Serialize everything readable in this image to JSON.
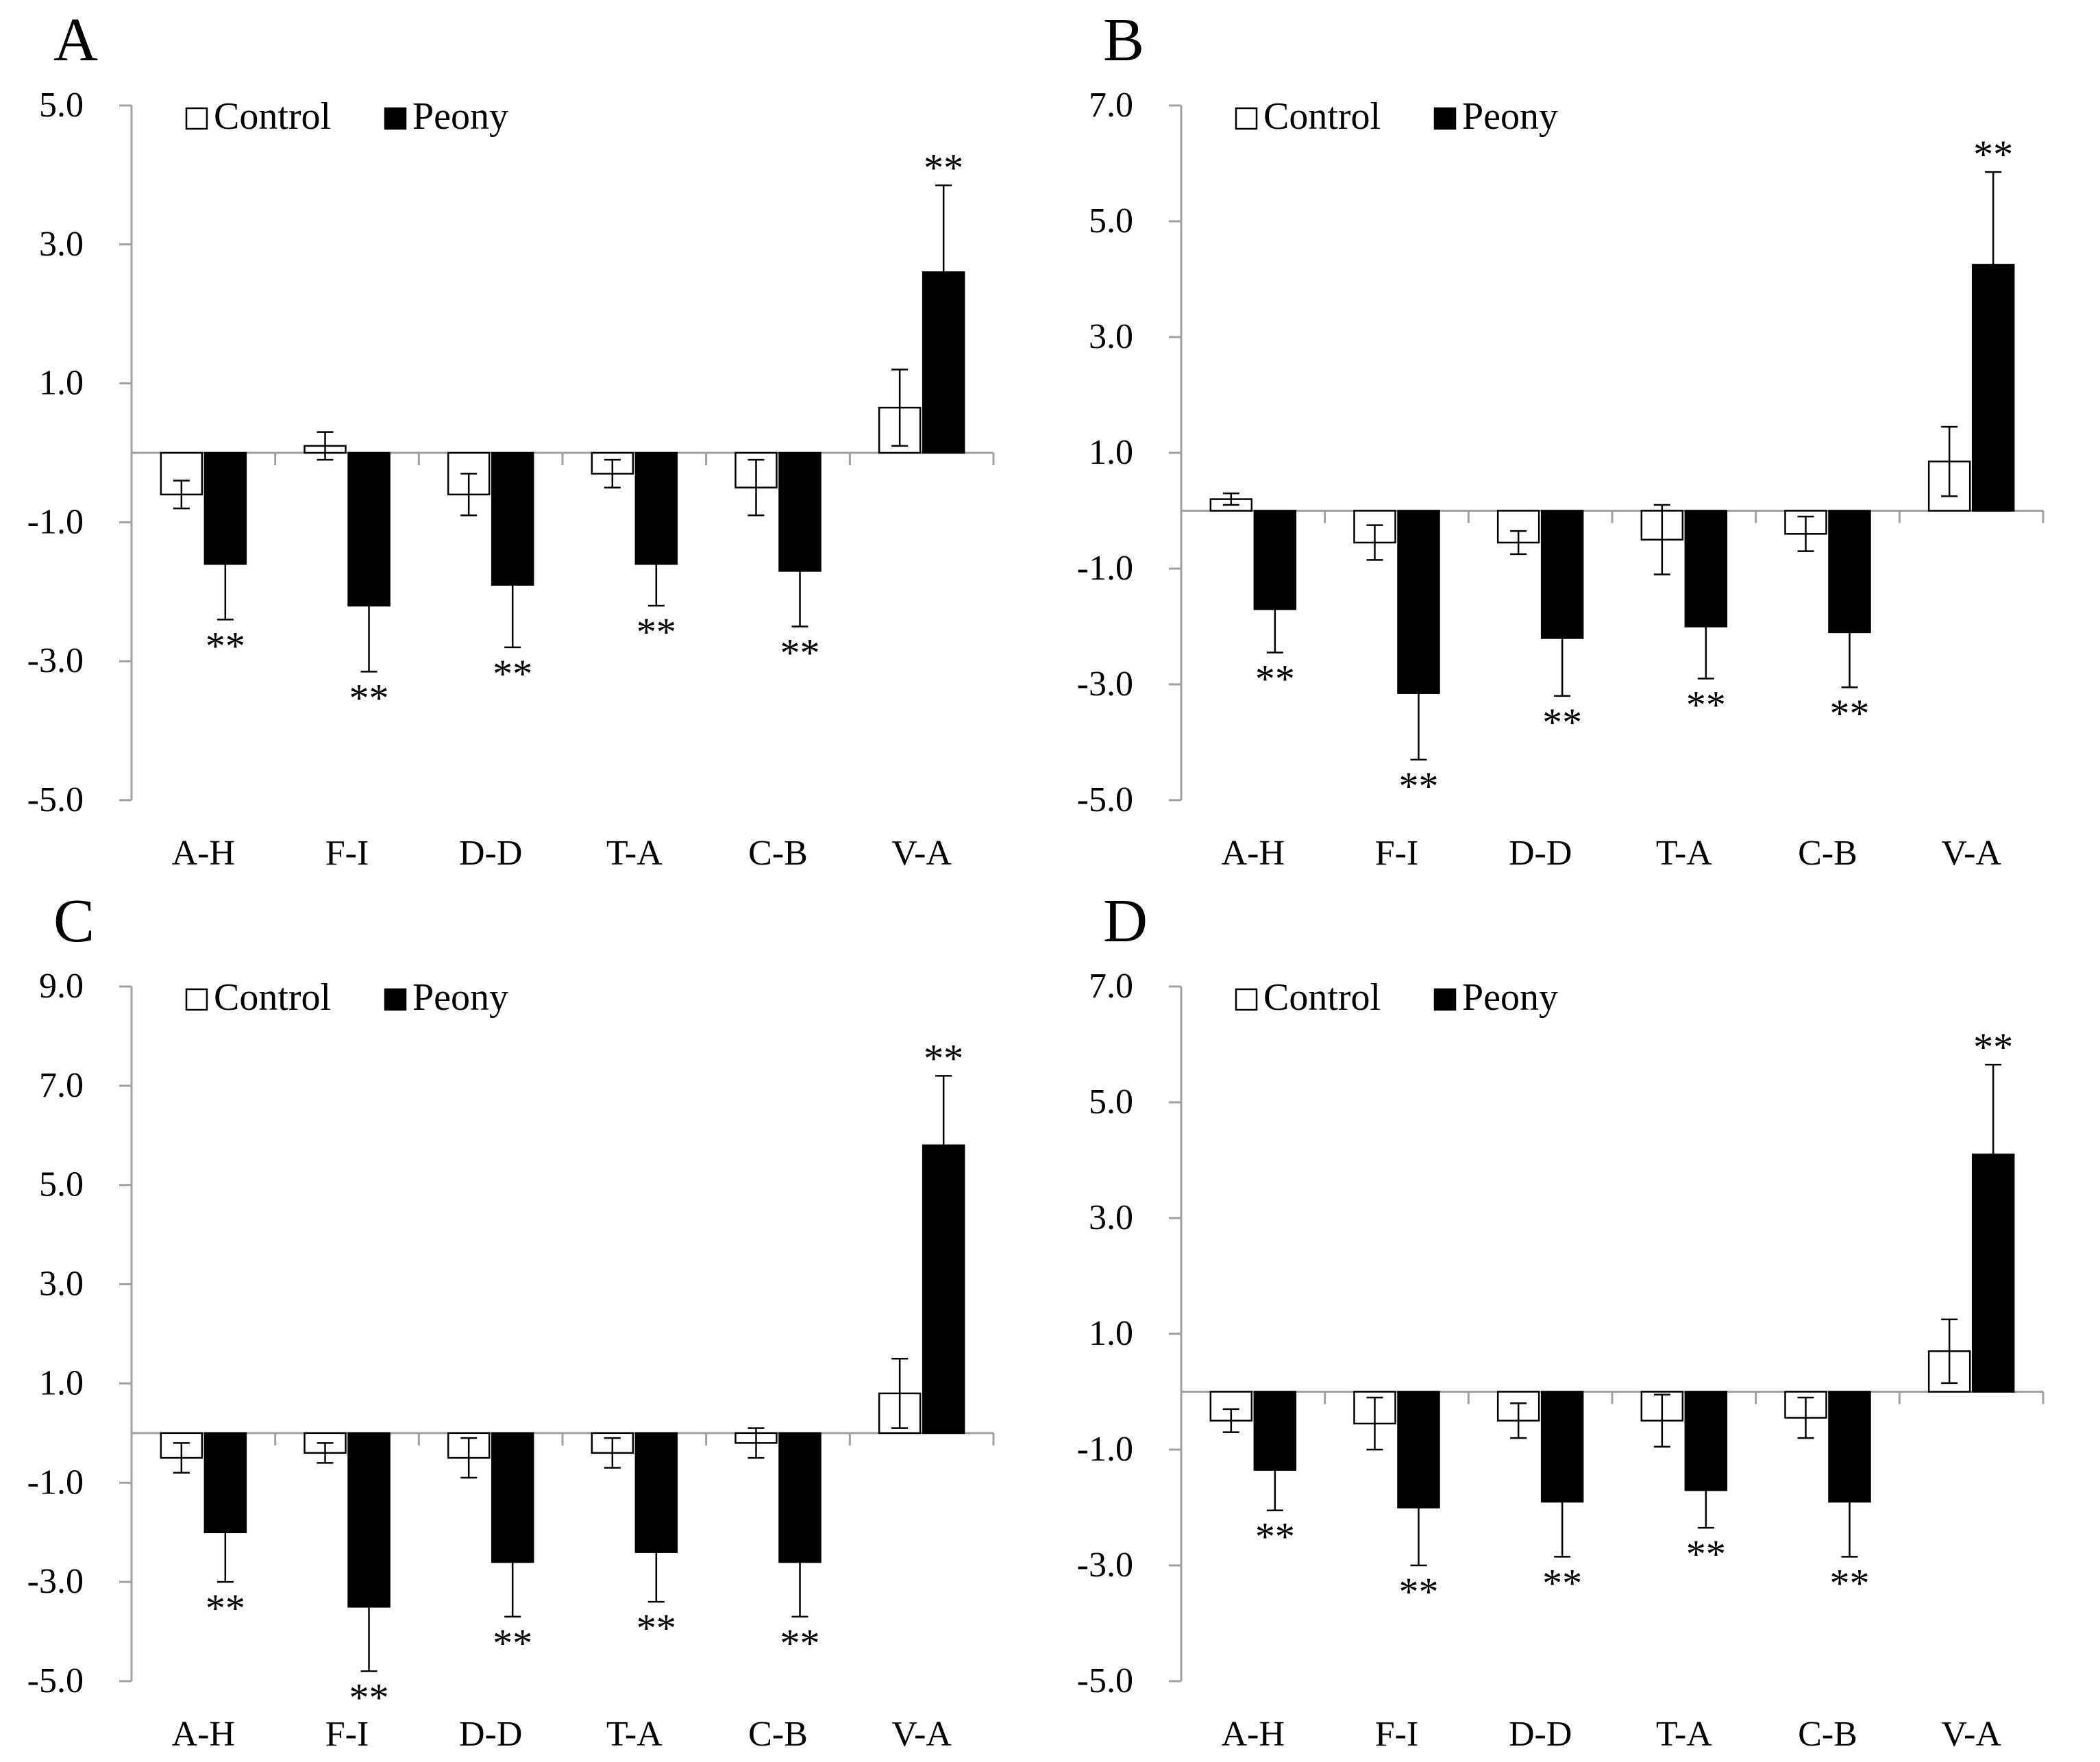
{
  "panels": [
    {
      "letter": "A",
      "chart_data": {
        "type": "bar",
        "categories": [
          "A-H",
          "F-I",
          "D-D",
          "T-A",
          "C-B",
          "V-A"
        ],
        "series": [
          {
            "name": "Control",
            "values": [
              -0.6,
              0.1,
              -0.6,
              -0.3,
              -0.5,
              0.65
            ],
            "errors": [
              0.2,
              0.2,
              0.3,
              0.2,
              0.4,
              0.55
            ]
          },
          {
            "name": "Peony",
            "values": [
              -1.6,
              -2.2,
              -1.9,
              -1.6,
              -1.7,
              2.6
            ],
            "errors": [
              0.8,
              0.95,
              0.9,
              0.6,
              0.8,
              1.25
            ]
          }
        ],
        "significance": [
          "**",
          "**",
          "**",
          "**",
          "**",
          "**"
        ],
        "yticks": [
          "5.0",
          "3.0",
          "1.0",
          "-1.0",
          "-3.0",
          "-5.0"
        ],
        "ylim": [
          -5,
          5
        ],
        "xlabel": "",
        "ylabel": "",
        "legend": "top-left",
        "grid": false
      }
    },
    {
      "letter": "B",
      "chart_data": {
        "type": "bar",
        "categories": [
          "A-H",
          "F-I",
          "D-D",
          "T-A",
          "C-B",
          "V-A"
        ],
        "series": [
          {
            "name": "Control",
            "values": [
              0.2,
              -0.55,
              -0.55,
              -0.5,
              -0.4,
              0.85
            ],
            "errors": [
              0.1,
              0.3,
              0.2,
              0.6,
              0.3,
              0.6
            ]
          },
          {
            "name": "Peony",
            "values": [
              -1.7,
              -3.15,
              -2.2,
              -2.0,
              -2.1,
              4.25
            ],
            "errors": [
              0.75,
              1.15,
              1.0,
              0.9,
              0.95,
              1.6
            ]
          }
        ],
        "significance": [
          "**",
          "**",
          "**",
          "**",
          "**",
          "**"
        ],
        "yticks": [
          "7.0",
          "5.0",
          "3.0",
          "1.0",
          "-1.0",
          "-3.0",
          "-5.0"
        ],
        "ylim": [
          -5,
          7
        ],
        "xlabel": "",
        "ylabel": "",
        "legend": "top-left",
        "grid": false
      }
    },
    {
      "letter": "C",
      "chart_data": {
        "type": "bar",
        "categories": [
          "A-H",
          "F-I",
          "D-D",
          "T-A",
          "C-B",
          "V-A"
        ],
        "series": [
          {
            "name": "Control",
            "values": [
              -0.5,
              -0.4,
              -0.5,
              -0.4,
              -0.2,
              0.8
            ],
            "errors": [
              0.3,
              0.2,
              0.4,
              0.3,
              0.3,
              0.7
            ]
          },
          {
            "name": "Peony",
            "values": [
              -2.0,
              -3.5,
              -2.6,
              -2.4,
              -2.6,
              5.8
            ],
            "errors": [
              1.0,
              1.3,
              1.1,
              1.0,
              1.1,
              1.4
            ]
          }
        ],
        "significance": [
          "**",
          "**",
          "**",
          "**",
          "**",
          "**"
        ],
        "yticks": [
          "9.0",
          "7.0",
          "5.0",
          "3.0",
          "1.0",
          "-1.0",
          "-3.0",
          "-5.0"
        ],
        "ylim": [
          -5,
          9
        ],
        "xlabel": "",
        "ylabel": "",
        "legend": "top-left",
        "grid": false
      }
    },
    {
      "letter": "D",
      "chart_data": {
        "type": "bar",
        "categories": [
          "A-H",
          "F-I",
          "D-D",
          "T-A",
          "C-B",
          "V-A"
        ],
        "series": [
          {
            "name": "Control",
            "values": [
              -0.5,
              -0.55,
              -0.5,
              -0.5,
              -0.45,
              0.7
            ],
            "errors": [
              0.2,
              0.45,
              0.3,
              0.45,
              0.35,
              0.55
            ]
          },
          {
            "name": "Peony",
            "values": [
              -1.35,
              -2.0,
              -1.9,
              -1.7,
              -1.9,
              4.1
            ],
            "errors": [
              0.7,
              1.0,
              0.95,
              0.65,
              0.95,
              1.55
            ]
          }
        ],
        "significance": [
          "**",
          "**",
          "**",
          "**",
          "**",
          "**"
        ],
        "yticks": [
          "7.0",
          "5.0",
          "3.0",
          "1.0",
          "-1.0",
          "-3.0",
          "-5.0"
        ],
        "ylim": [
          -5,
          7
        ],
        "xlabel": "",
        "ylabel": "",
        "legend": "top-left",
        "grid": false
      }
    }
  ],
  "colors": {
    "control_fill": "#ffffff",
    "peony_fill": "#000000",
    "axis": "#a0a0a0",
    "stroke": "#000000"
  }
}
